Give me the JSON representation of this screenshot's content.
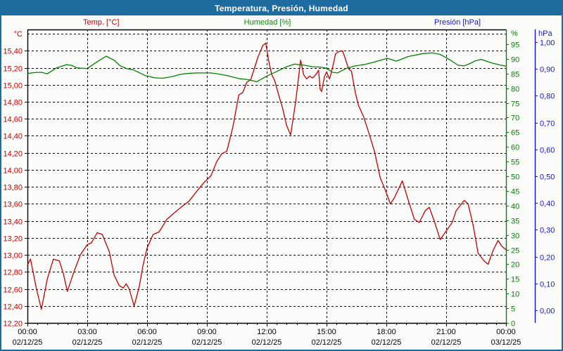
{
  "window": {
    "title": "Temperatura, Presión, Humedad"
  },
  "legend": [
    {
      "label": "Temp. [°C]",
      "color": "#c00000"
    },
    {
      "label": "Humedad [%]",
      "color": "#009100"
    },
    {
      "label": "Presión [hPa]",
      "color": "#1414cc"
    }
  ],
  "chart_data": {
    "type": "line",
    "title": "Temperatura, Presión, Humedad",
    "grid": true,
    "legend_position": "top",
    "x_axis": {
      "unit": "hours",
      "range": [
        0,
        24
      ],
      "major_tick_hours": 3,
      "minor_tick_hours": 0.5,
      "tick_labels": [
        {
          "time": "00:00",
          "date": "02/12/25"
        },
        {
          "time": "03:00",
          "date": "02/12/25"
        },
        {
          "time": "06:00",
          "date": "02/12/25"
        },
        {
          "time": "09:00",
          "date": "02/12/25"
        },
        {
          "time": "12:00",
          "date": "02/12/25"
        },
        {
          "time": "15:00",
          "date": "02/12/25"
        },
        {
          "time": "18:00",
          "date": "02/12/25"
        },
        {
          "time": "21:00",
          "date": "02/12/25"
        },
        {
          "time": "00:00",
          "date": "03/12/25"
        }
      ]
    },
    "axes": {
      "temperature": {
        "side": "left",
        "unit_label": "°C",
        "color": "#c00000",
        "min": 12.2,
        "max": 15.65,
        "tick_values": [
          15.4,
          15.2,
          15.0,
          14.8,
          14.6,
          14.4,
          14.2,
          14.0,
          13.8,
          13.6,
          13.4,
          13.2,
          13.0,
          12.8,
          12.6,
          12.4,
          12.2
        ],
        "tick_labels": [
          "15,40",
          "15,20",
          "15,00",
          "14,80",
          "14,60",
          "14,40",
          "14,20",
          "14,00",
          "13,80",
          "13,60",
          "13,40",
          "13,20",
          "13,00",
          "12,80",
          "12,60",
          "12,40",
          "12,20"
        ],
        "grid_values": [
          15.6,
          15.4,
          15.2,
          15.0,
          14.8,
          14.6,
          14.4,
          14.2,
          14.0,
          13.8,
          13.6,
          13.4,
          13.2,
          13.0,
          12.8,
          12.6,
          12.4
        ]
      },
      "humidity": {
        "side": "right",
        "unit_label": "%",
        "color": "#008000",
        "min": 0,
        "max": 100,
        "tick_values": [
          95,
          90,
          85,
          80,
          75,
          70,
          65,
          60,
          55,
          50,
          45,
          40,
          35,
          30,
          25,
          20,
          15,
          10,
          5,
          0
        ],
        "tick_labels": [
          "95",
          "90",
          "85",
          "80",
          "75",
          "70",
          "65",
          "60",
          "55",
          "50",
          "45",
          "40",
          "35",
          "30",
          "25",
          "20",
          "15",
          "10",
          "5",
          "0"
        ]
      },
      "pressure": {
        "side": "far-right",
        "unit_label": "hPa",
        "color": "#1414cc",
        "min": -0.047,
        "max": 1.047,
        "tick_values": [
          1.0,
          0.9,
          0.8,
          0.7,
          0.6,
          0.5,
          0.4,
          0.3,
          0.2,
          0.1,
          0.0
        ],
        "tick_labels": [
          "1,00",
          "0,90",
          "0,80",
          "0,70",
          "0,60",
          "0,50",
          "0,40",
          "0,30",
          "0,20",
          "0,10",
          "0,00"
        ]
      }
    },
    "series": [
      {
        "name": "Temp. [°C]",
        "axis": "temperature",
        "color": "#c00000",
        "points": [
          [
            0,
            12.88
          ],
          [
            0.15,
            12.95
          ],
          [
            0.45,
            12.6
          ],
          [
            0.7,
            12.36
          ],
          [
            1,
            12.72
          ],
          [
            1.3,
            12.95
          ],
          [
            1.6,
            12.93
          ],
          [
            1.8,
            12.78
          ],
          [
            2,
            12.57
          ],
          [
            2.3,
            12.78
          ],
          [
            2.65,
            13.0
          ],
          [
            3,
            13.12
          ],
          [
            3.2,
            13.14
          ],
          [
            3.5,
            13.26
          ],
          [
            3.75,
            13.24
          ],
          [
            4.1,
            13.04
          ],
          [
            4.35,
            12.76
          ],
          [
            4.6,
            12.64
          ],
          [
            4.8,
            12.61
          ],
          [
            4.95,
            12.66
          ],
          [
            5.1,
            12.6
          ],
          [
            5.35,
            12.4
          ],
          [
            5.6,
            12.62
          ],
          [
            5.8,
            12.88
          ],
          [
            6,
            13.08
          ],
          [
            6.3,
            13.24
          ],
          [
            6.6,
            13.27
          ],
          [
            7,
            13.42
          ],
          [
            7.3,
            13.48
          ],
          [
            7.7,
            13.56
          ],
          [
            8.1,
            13.63
          ],
          [
            8.5,
            13.75
          ],
          [
            8.85,
            13.85
          ],
          [
            9.2,
            13.93
          ],
          [
            9.5,
            14.1
          ],
          [
            9.75,
            14.19
          ],
          [
            10,
            14.22
          ],
          [
            10.3,
            14.5
          ],
          [
            10.6,
            14.88
          ],
          [
            10.8,
            14.91
          ],
          [
            11,
            15.03
          ],
          [
            11.2,
            15.06
          ],
          [
            11.55,
            15.32
          ],
          [
            11.8,
            15.46
          ],
          [
            11.95,
            15.49
          ],
          [
            12.1,
            15.28
          ],
          [
            12.25,
            15.12
          ],
          [
            12.4,
            15.05
          ],
          [
            12.6,
            14.88
          ],
          [
            12.8,
            14.72
          ],
          [
            13,
            14.52
          ],
          [
            13.2,
            14.41
          ],
          [
            13.45,
            14.8
          ],
          [
            13.7,
            15.29
          ],
          [
            13.85,
            15.12
          ],
          [
            14,
            15.07
          ],
          [
            14.15,
            15.1
          ],
          [
            14.3,
            15.08
          ],
          [
            14.5,
            15.13
          ],
          [
            14.6,
            15.17
          ],
          [
            14.68,
            14.95
          ],
          [
            14.75,
            14.92
          ],
          [
            14.9,
            15.1
          ],
          [
            15,
            15.15
          ],
          [
            15.15,
            15.07
          ],
          [
            15.3,
            15.2
          ],
          [
            15.45,
            15.36
          ],
          [
            15.6,
            15.39
          ],
          [
            15.8,
            15.4
          ],
          [
            15.95,
            15.3
          ],
          [
            16.1,
            15.19
          ],
          [
            16.25,
            15.16
          ],
          [
            16.45,
            14.9
          ],
          [
            16.6,
            14.76
          ],
          [
            16.85,
            14.63
          ],
          [
            17.1,
            14.45
          ],
          [
            17.4,
            14.22
          ],
          [
            17.7,
            13.9
          ],
          [
            17.95,
            13.76
          ],
          [
            18.2,
            13.6
          ],
          [
            18.4,
            13.67
          ],
          [
            18.8,
            13.87
          ],
          [
            19.1,
            13.64
          ],
          [
            19.4,
            13.42
          ],
          [
            19.65,
            13.38
          ],
          [
            19.95,
            13.52
          ],
          [
            20.15,
            13.56
          ],
          [
            20.4,
            13.4
          ],
          [
            20.7,
            13.18
          ],
          [
            21,
            13.28
          ],
          [
            21.3,
            13.38
          ],
          [
            21.5,
            13.52
          ],
          [
            21.9,
            13.64
          ],
          [
            22.1,
            13.6
          ],
          [
            22.35,
            13.35
          ],
          [
            22.6,
            13.02
          ],
          [
            22.9,
            12.93
          ],
          [
            23.1,
            12.89
          ],
          [
            23.35,
            13.05
          ],
          [
            23.6,
            13.17
          ],
          [
            23.8,
            13.1
          ],
          [
            24,
            13.06
          ]
        ]
      },
      {
        "name": "Humedad [%]",
        "axis": "humidity",
        "color": "#008000",
        "points": [
          [
            0,
            85.0
          ],
          [
            0.35,
            85.3
          ],
          [
            0.7,
            85.4
          ],
          [
            1,
            84.9
          ],
          [
            1.45,
            86.9
          ],
          [
            1.95,
            88.0
          ],
          [
            2.2,
            87.8
          ],
          [
            2.5,
            86.9
          ],
          [
            3,
            86.7
          ],
          [
            3.45,
            88.8
          ],
          [
            3.95,
            90.9
          ],
          [
            4.35,
            89.5
          ],
          [
            4.65,
            87.6
          ],
          [
            5,
            86.6
          ],
          [
            5.3,
            86.3
          ],
          [
            5.9,
            84.3
          ],
          [
            6.1,
            84.0
          ],
          [
            6.4,
            83.5
          ],
          [
            6.8,
            83.4
          ],
          [
            7.3,
            84.0
          ],
          [
            7.65,
            84.7
          ],
          [
            8,
            85.0
          ],
          [
            8.5,
            85.2
          ],
          [
            9.2,
            85.2
          ],
          [
            9.6,
            84.8
          ],
          [
            10,
            84.3
          ],
          [
            10.3,
            83.8
          ],
          [
            10.65,
            83.2
          ],
          [
            11,
            83.0
          ],
          [
            11.5,
            82.2
          ],
          [
            12,
            84.1
          ],
          [
            12.5,
            85.7
          ],
          [
            13,
            87.3
          ],
          [
            13.4,
            88.2
          ],
          [
            13.9,
            87.8
          ],
          [
            14.3,
            87.3
          ],
          [
            14.65,
            87.2
          ],
          [
            15,
            86.8
          ],
          [
            15.3,
            85.4
          ],
          [
            15.55,
            85.2
          ],
          [
            16,
            86.8
          ],
          [
            16.45,
            87.6
          ],
          [
            16.85,
            88.0
          ],
          [
            17.35,
            88.8
          ],
          [
            18.05,
            90.2
          ],
          [
            18.5,
            89.2
          ],
          [
            19.1,
            90.8
          ],
          [
            19.85,
            91.8
          ],
          [
            20.3,
            92.0
          ],
          [
            20.7,
            91.5
          ],
          [
            21.2,
            89.6
          ],
          [
            21.6,
            87.8
          ],
          [
            21.9,
            87.6
          ],
          [
            22.2,
            88.4
          ],
          [
            22.45,
            89.3
          ],
          [
            22.75,
            89.8
          ],
          [
            23.3,
            88.6
          ],
          [
            23.65,
            88.0
          ],
          [
            24,
            87.5
          ]
        ]
      },
      {
        "name": "Presión [hPa]",
        "axis": "pressure",
        "color": "#1414cc",
        "points": []
      }
    ]
  }
}
